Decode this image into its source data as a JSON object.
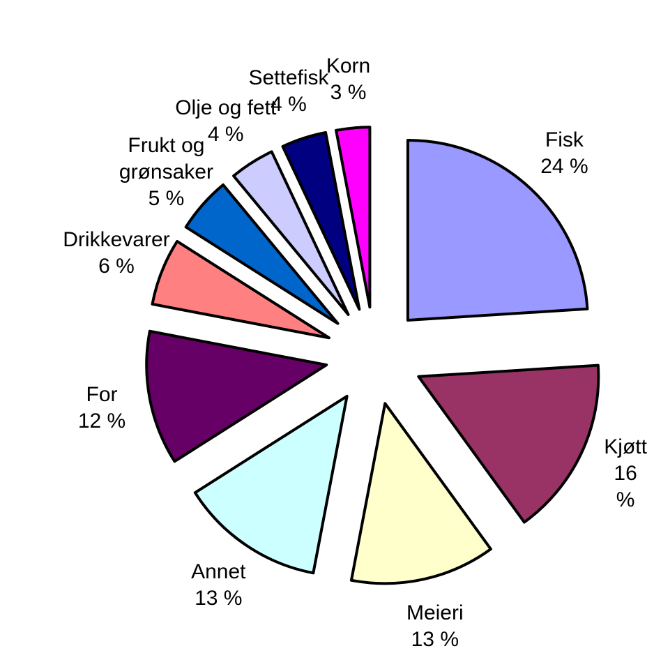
{
  "chart_data": {
    "type": "pie",
    "categories": [
      "Fisk",
      "Kjøtt",
      "Meieri",
      "Annet",
      "For",
      "Drikkevarer",
      "Frukt og grønsaker",
      "Olje og fett",
      "Settefisk",
      "Korn"
    ],
    "values": [
      24,
      16,
      13,
      13,
      12,
      6,
      5,
      4,
      4,
      3
    ],
    "value_labels": [
      "24 %",
      "16 %",
      "13 %",
      "13 %",
      "12 %",
      "6 %",
      "5 %",
      "4 %",
      "4 %",
      "3 %"
    ],
    "colors": [
      "#9999ff",
      "#993366",
      "#ffffcc",
      "#ccffff",
      "#660066",
      "#ff8080",
      "#0066cc",
      "#ccccff",
      "#000080",
      "#ff00ff"
    ]
  }
}
